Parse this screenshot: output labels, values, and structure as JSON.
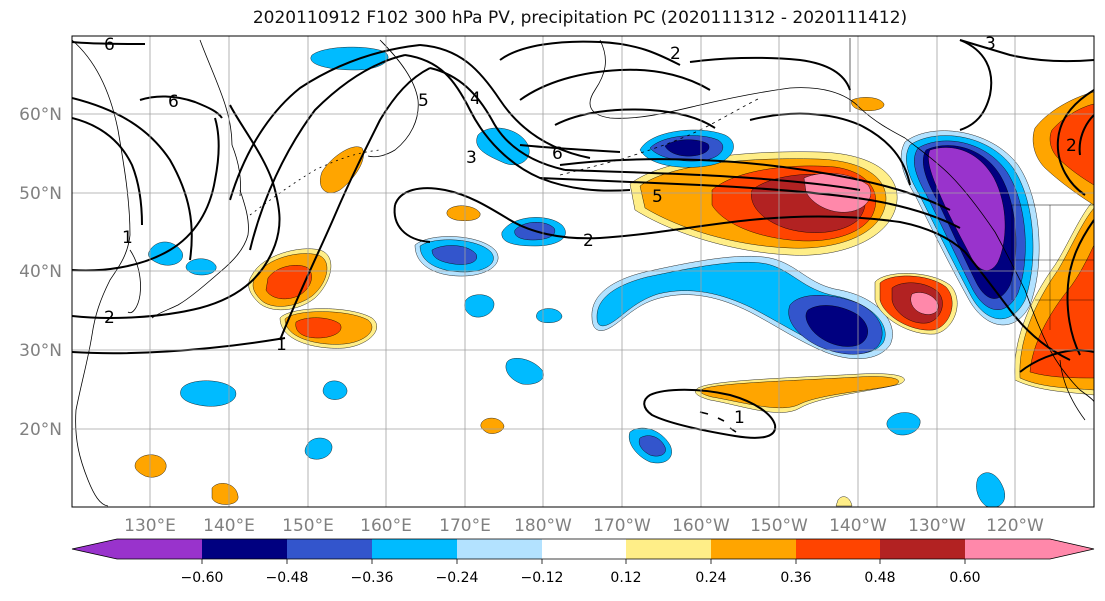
{
  "title": "2020110912 F102 300 hPa PV, precipitation PC (2020111312 - 2020111412)",
  "axes": {
    "lat_ticks": [
      "60°N",
      "50°N",
      "40°N",
      "30°N",
      "20°N"
    ],
    "lon_ticks": [
      "130°E",
      "140°E",
      "150°E",
      "160°E",
      "170°E",
      "180°W",
      "170°W",
      "160°W",
      "150°W",
      "140°W",
      "130°W",
      "120°W"
    ],
    "grid": true
  },
  "colorbar": {
    "colors": [
      "#9933cc",
      "#000080",
      "#3355cc",
      "#00bbff",
      "#b3e2ff",
      "#ffffff",
      "#ffee88",
      "#ffa500",
      "#ff4400",
      "#b22222",
      "#ff88aa"
    ],
    "tick_labels": [
      "−0.60",
      "−0.48",
      "−0.36",
      "−0.24",
      "−0.12",
      "0.12",
      "0.24",
      "0.36",
      "0.48",
      "0.60"
    ],
    "extend": "both"
  },
  "contour_labels": [
    "6",
    "6",
    "6",
    "5",
    "5",
    "4",
    "3",
    "3",
    "2",
    "2",
    "2",
    "2",
    "1",
    "1",
    "1"
  ],
  "fill_colors": {
    "orange": "#ffa500",
    "red": "#ff4400",
    "darkred": "#b22222",
    "pink": "#ff88aa",
    "yellow": "#ffee88",
    "lightblue": "#b3e2ff",
    "cyan": "#00bbff",
    "blue": "#3355cc",
    "navy": "#000080",
    "purple": "#9933cc"
  }
}
